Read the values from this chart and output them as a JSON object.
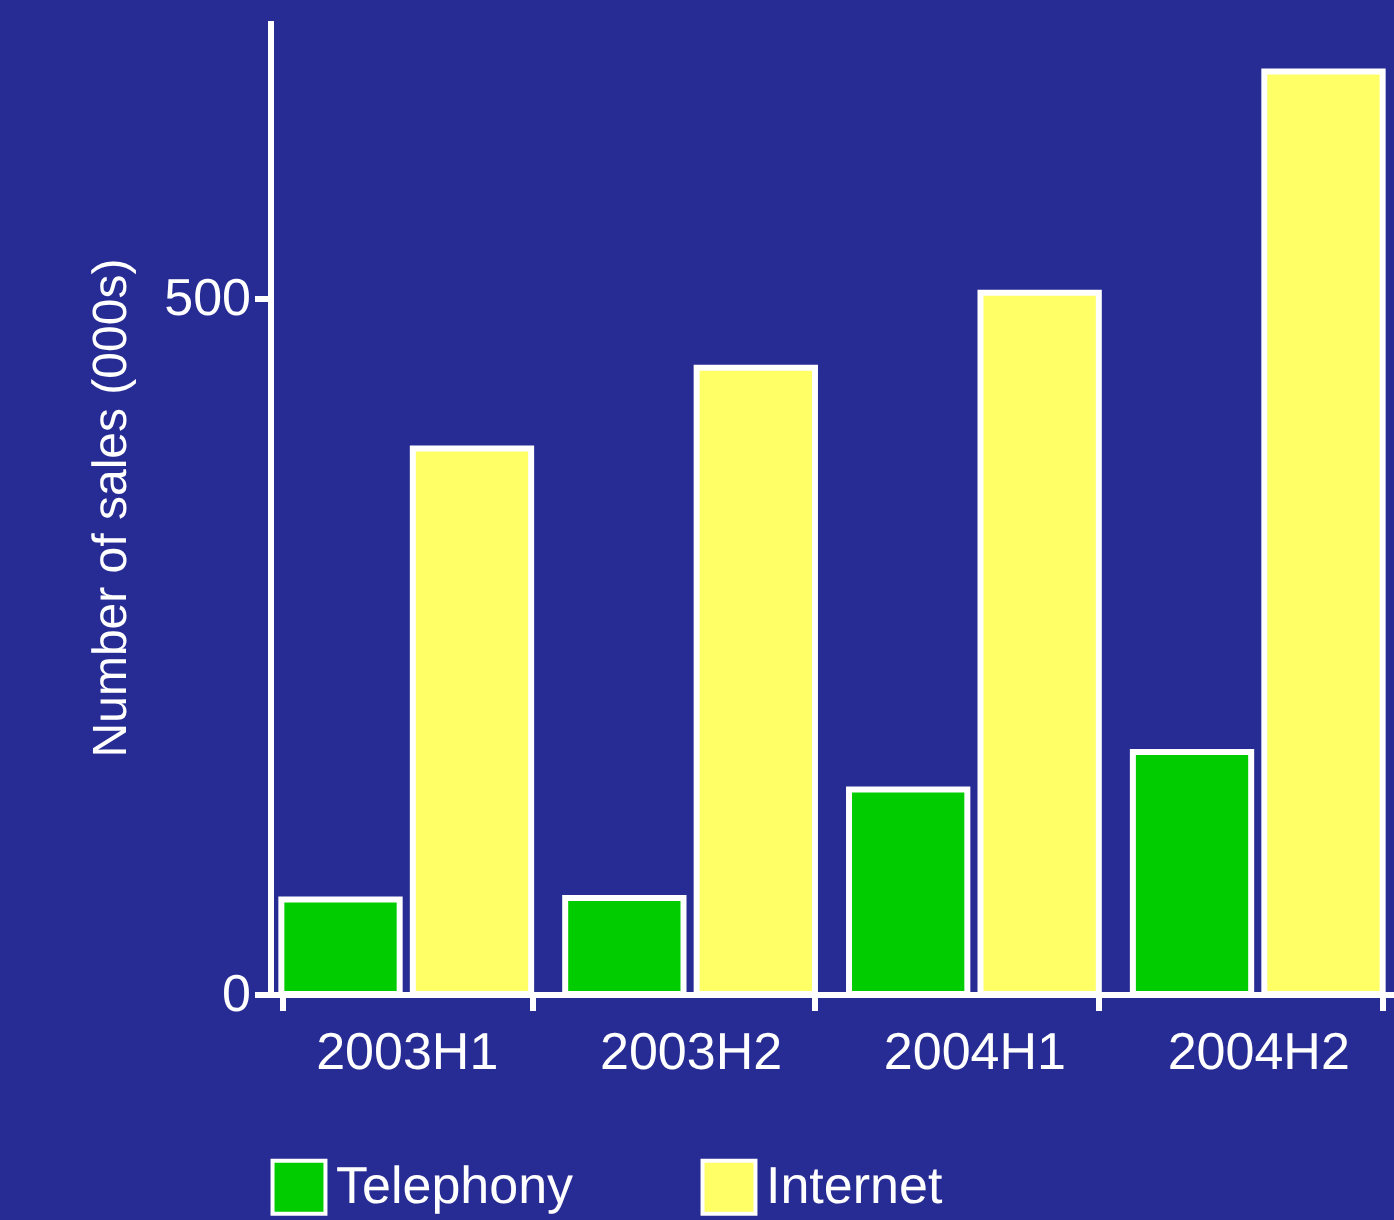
{
  "chart_data": {
    "type": "bar",
    "ylabel": "Number of sales (000s)",
    "categories": [
      "2003H1",
      "2003H2",
      "2004H1",
      "2004H2"
    ],
    "series": [
      {
        "name": "Telephony",
        "color": "#00cc00",
        "values": [
          68,
          69,
          147,
          174
        ]
      },
      {
        "name": "Internet",
        "color": "#ffff66",
        "values": [
          392,
          450,
          504,
          663
        ]
      }
    ],
    "ylim": [
      0,
      700
    ],
    "yticks": [
      0,
      500
    ],
    "grid": false,
    "legend": "bottom"
  }
}
